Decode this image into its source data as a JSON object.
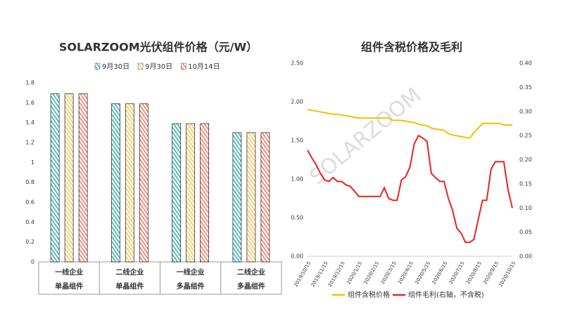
{
  "chart_data": [
    {
      "type": "bar",
      "title": "SOLARZOOM光伏组件价格（元/W）",
      "categories": [
        "一线企业",
        "二线企业",
        "一线企业",
        "二线企业"
      ],
      "subcategories": [
        "单晶组件",
        "单晶组件",
        "多晶组件",
        "多晶组件"
      ],
      "series": [
        {
          "name": "9月30日",
          "color": "#3bb3ad",
          "values": [
            1.69,
            1.59,
            1.39,
            1.3
          ]
        },
        {
          "name": "9月30日",
          "color": "#f5c860",
          "values": [
            1.69,
            1.59,
            1.39,
            1.3
          ]
        },
        {
          "name": "10月14日",
          "color": "#f07a6c",
          "values": [
            1.69,
            1.59,
            1.39,
            1.3
          ]
        }
      ],
      "ylim": [
        0,
        1.8
      ],
      "yticks": [
        0,
        0.2,
        0.4,
        0.6,
        0.8,
        1,
        1.2,
        1.4,
        1.6,
        1.8
      ]
    },
    {
      "type": "line",
      "title": "组件含税价格及毛利",
      "watermark": "SOLARZOOM",
      "x": [
        "2019/10/15",
        null,
        null,
        null,
        "2019/11/15",
        null,
        null,
        null,
        "2019/12/15",
        null,
        null,
        null,
        "2020/1/15",
        null,
        null,
        null,
        "2020/2/15",
        null,
        null,
        null,
        "2020/3/15",
        null,
        null,
        null,
        "2020/4/15",
        null,
        null,
        null,
        "2020/5/15",
        null,
        null,
        null,
        "2020/6/15",
        null,
        null,
        null,
        "2020/7/15",
        null,
        null,
        null,
        "2020/8/15",
        null,
        null,
        null,
        "2020/9/15",
        null,
        null,
        null,
        "2020/10/15"
      ],
      "series": [
        {
          "name": "组件含税价格",
          "color": "#f5bf00",
          "axis": "y",
          "values": [
            1.9,
            1.89,
            1.88,
            1.87,
            1.86,
            1.85,
            1.84,
            1.84,
            1.83,
            1.82,
            1.81,
            1.8,
            1.79,
            1.79,
            1.79,
            1.79,
            1.79,
            1.79,
            1.79,
            1.79,
            1.76,
            1.76,
            1.76,
            1.75,
            1.74,
            1.73,
            1.71,
            1.7,
            1.69,
            1.66,
            1.65,
            1.64,
            1.63,
            1.59,
            1.57,
            1.56,
            1.55,
            1.54,
            1.53,
            1.6,
            1.66,
            1.72,
            1.72,
            1.72,
            1.72,
            1.72,
            1.7,
            1.7,
            1.7
          ]
        },
        {
          "name": "组件毛利(右轴，不含税)",
          "color": "#e8231c",
          "axis": "y2",
          "values": [
            0.22,
            0.204,
            0.19,
            0.172,
            0.158,
            0.155,
            0.163,
            0.155,
            0.155,
            0.148,
            0.145,
            0.135,
            0.124,
            0.124,
            0.124,
            0.124,
            0.124,
            0.124,
            0.142,
            0.12,
            0.116,
            0.116,
            0.158,
            0.165,
            0.185,
            0.233,
            0.25,
            0.245,
            0.238,
            0.172,
            0.163,
            0.155,
            0.155,
            0.12,
            0.095,
            0.058,
            0.048,
            0.029,
            0.029,
            0.035,
            0.076,
            0.116,
            0.116,
            0.18,
            0.196,
            0.196,
            0.196,
            0.138,
            0.1
          ]
        }
      ],
      "ylim": [
        0,
        2.5
      ],
      "yticks": [
        {
          "value": 0,
          "label": "0.00"
        },
        {
          "value": 0.5,
          "label": "0.50"
        },
        {
          "value": 1,
          "label": "1.00"
        },
        {
          "value": 1.5,
          "label": "1.50"
        },
        {
          "value": 2,
          "label": "2.00"
        },
        {
          "value": 2.5,
          "label": "2.50"
        }
      ],
      "y2lim": [
        0,
        0.4
      ],
      "y2ticks": [
        {
          "value": 0,
          "label": "0.00"
        },
        {
          "value": 0.05,
          "label": "0.05"
        },
        {
          "value": 0.1,
          "label": "0.10"
        },
        {
          "value": 0.15,
          "label": "0.15"
        },
        {
          "value": 0.2,
          "label": "0.20"
        },
        {
          "value": 0.25,
          "label": "0.25"
        },
        {
          "value": 0.3,
          "label": "0.30"
        },
        {
          "value": 0.35,
          "label": "0.35"
        },
        {
          "value": 0.4,
          "label": "0.40"
        }
      ]
    }
  ]
}
